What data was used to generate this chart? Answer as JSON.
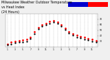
{
  "title_line1": "Milwaukee Weather Outdoor Temperature",
  "title_line2": "vs Heat Index",
  "title_line3": "(24 Hours)",
  "title_fontsize": 3.5,
  "bg_color": "#f0f0f0",
  "plot_bg": "#ffffff",
  "grid_color": "#aaaaaa",
  "ylim": [
    20,
    80
  ],
  "ytick_vals": [
    30,
    40,
    50,
    60,
    70
  ],
  "temp_color": "#ff0000",
  "heat_color": "#000000",
  "legend_blue": "#0000cc",
  "legend_red": "#ff0000",
  "temp_data": [
    [
      0,
      25
    ],
    [
      1,
      28
    ],
    [
      2,
      30
    ],
    [
      3,
      31
    ],
    [
      4,
      32
    ],
    [
      5,
      33
    ],
    [
      6,
      38
    ],
    [
      7,
      47
    ],
    [
      8,
      55
    ],
    [
      9,
      60
    ],
    [
      10,
      63
    ],
    [
      11,
      66
    ],
    [
      12,
      68
    ],
    [
      13,
      65
    ],
    [
      14,
      60
    ],
    [
      15,
      54
    ],
    [
      16,
      48
    ],
    [
      17,
      44
    ],
    [
      18,
      41
    ],
    [
      19,
      39
    ],
    [
      20,
      37
    ],
    [
      21,
      35
    ],
    [
      22,
      33
    ],
    [
      23,
      31
    ]
  ],
  "heat_data": [
    [
      0,
      23
    ],
    [
      1,
      25
    ],
    [
      2,
      27
    ],
    [
      3,
      28
    ],
    [
      4,
      29
    ],
    [
      5,
      30
    ],
    [
      6,
      35
    ],
    [
      7,
      44
    ],
    [
      8,
      52
    ],
    [
      9,
      57
    ],
    [
      10,
      60
    ],
    [
      11,
      63
    ],
    [
      12,
      65
    ],
    [
      13,
      62
    ],
    [
      14,
      57
    ],
    [
      15,
      51
    ],
    [
      16,
      45
    ],
    [
      17,
      41
    ],
    [
      18,
      38
    ],
    [
      19,
      36
    ],
    [
      20,
      34
    ],
    [
      21,
      32
    ],
    [
      22,
      30
    ],
    [
      23,
      28
    ]
  ],
  "x_ticks": [
    0,
    2,
    4,
    6,
    8,
    10,
    12,
    14,
    16,
    18,
    20,
    22
  ],
  "x_ticklabels": [
    "1",
    "3",
    "5",
    "7",
    "9",
    "11",
    "1",
    "3",
    "5",
    "7",
    "9",
    "11"
  ]
}
